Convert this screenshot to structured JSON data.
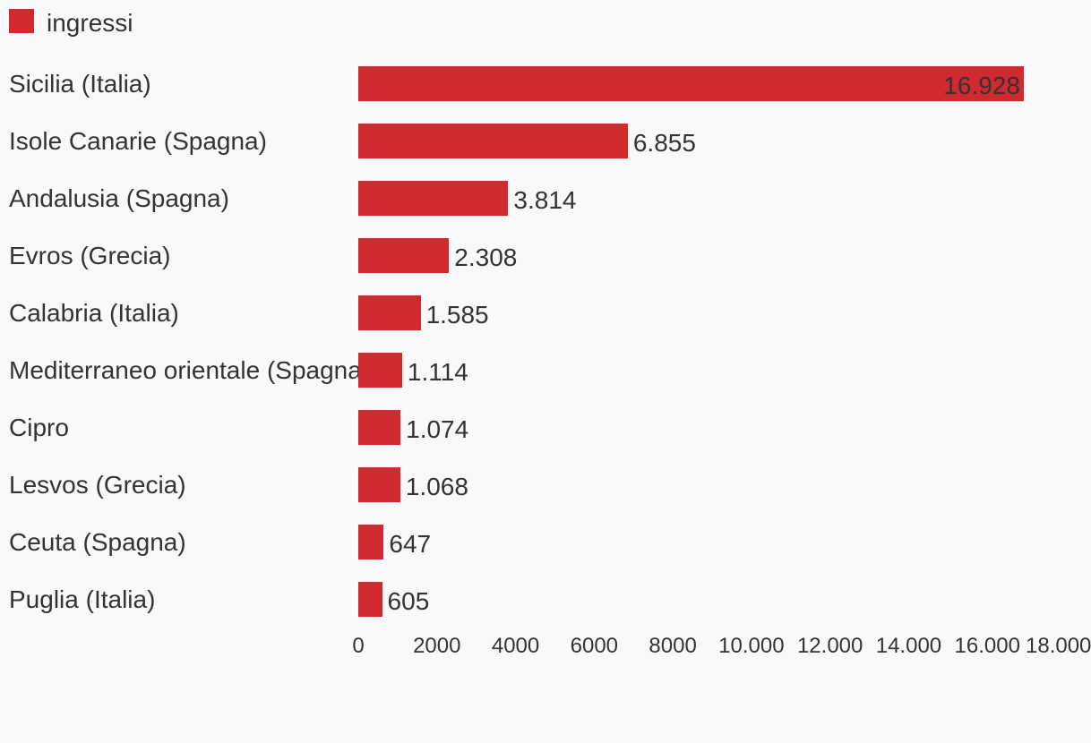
{
  "chart_data": {
    "type": "bar",
    "orientation": "horizontal",
    "legend": "top-left",
    "series": [
      {
        "name": "ingressi",
        "color": "#d0292f",
        "values": [
          16928,
          6855,
          3814,
          2308,
          1585,
          1114,
          1074,
          1068,
          647,
          605
        ],
        "value_labels": [
          "16.928",
          "6.855",
          "3.814",
          "2.308",
          "1.585",
          "1.114",
          "1.074",
          "1.068",
          "647",
          "605"
        ]
      }
    ],
    "categories": [
      "Sicilia (Italia)",
      "Isole Canarie (Spagna)",
      "Andalusia (Spagna)",
      "Evros (Grecia)",
      "Calabria (Italia)",
      "Mediterraneo orientale (Spagna)",
      "Cipro",
      "Lesvos (Grecia)",
      "Ceuta (Spagna)",
      "Puglia (Italia)"
    ],
    "xlim": [
      0,
      18000
    ],
    "xticks": [
      0,
      2000,
      4000,
      6000,
      8000,
      {
        "value": 10000,
        "label": "10.000"
      },
      {
        "value": 12000,
        "label": "12.000"
      },
      {
        "value": 14000,
        "label": "14.000"
      },
      {
        "value": 16000,
        "label": "16.000"
      },
      {
        "value": 18000,
        "label": "18.000"
      }
    ]
  }
}
